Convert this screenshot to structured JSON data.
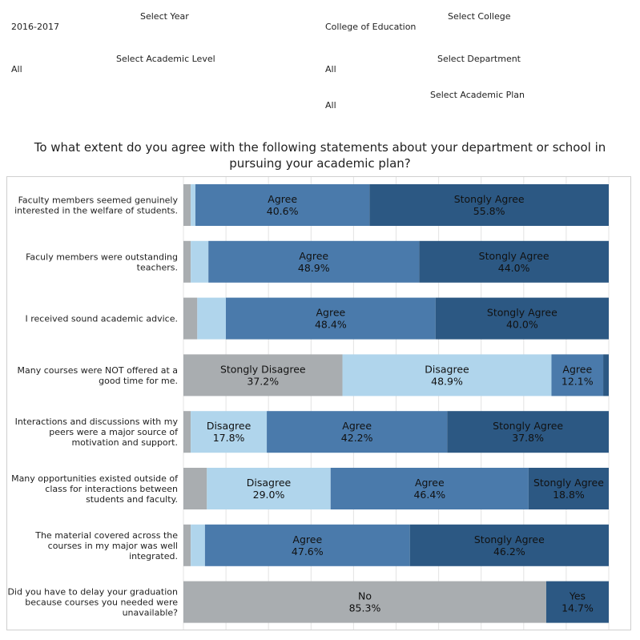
{
  "filters": {
    "year": {
      "label": "Select Year",
      "value": "2016-2017"
    },
    "college": {
      "label": "Select College",
      "value": "College of Education"
    },
    "academic_level": {
      "label": "Select Academic Level",
      "value": "All"
    },
    "department": {
      "label": "Select Department",
      "value": "All"
    },
    "academic_plan": {
      "label": "Select Academic Plan",
      "value": "All"
    }
  },
  "title": {
    "line1": "To what extent do you agree with the following statements about your department or school in",
    "line2": "pursuing your academic plan?"
  },
  "colors": {
    "Stongly Disagree": "#a9adb0",
    "Disagree": "#b0d5ec",
    "Agree": "#4a7aab",
    "Stongly Agree": "#2c5883",
    "No": "#a9adb0",
    "Yes": "#2c5883",
    "gridline": "#e3e3e3"
  },
  "chart_data": {
    "type": "bar",
    "orientation": "horizontal-stacked-100",
    "xlim": [
      0,
      100
    ],
    "categories": [
      [
        "Faculty members seemed genuinely",
        "interested in the welfare of students."
      ],
      [
        "Faculy members were outstanding",
        "teachers."
      ],
      [
        "I received sound academic advice."
      ],
      [
        "Many courses were NOT offered at a",
        "good time for me."
      ],
      [
        "Interactions and discussions with my",
        "peers were a major source of",
        "motivation and support."
      ],
      [
        "Many opportunities existed outside of",
        "class for interactions between",
        "students and faculty."
      ],
      [
        "The material covered across the",
        "courses in my major was well",
        "integrated."
      ],
      [
        "Did you have to delay your graduation",
        "because courses you needed were",
        "unavailable?"
      ]
    ],
    "rows": [
      {
        "segments": [
          {
            "name": "Stongly Disagree",
            "value": 1.7,
            "label": ""
          },
          {
            "name": "Disagree",
            "value": 1.1,
            "label": ""
          },
          {
            "name": "Agree",
            "value": 40.6,
            "label": "40.6%"
          },
          {
            "name": "Stongly Agree",
            "value": 55.8,
            "label": "55.8%"
          }
        ]
      },
      {
        "segments": [
          {
            "name": "Stongly Disagree",
            "value": 1.7,
            "label": ""
          },
          {
            "name": "Disagree",
            "value": 4.1,
            "label": ""
          },
          {
            "name": "Agree",
            "value": 48.9,
            "label": "48.9%"
          },
          {
            "name": "Stongly Agree",
            "value": 44.0,
            "label": "44.0%"
          }
        ]
      },
      {
        "segments": [
          {
            "name": "Stongly Disagree",
            "value": 3.2,
            "label": ""
          },
          {
            "name": "Disagree",
            "value": 6.6,
            "label": ""
          },
          {
            "name": "Agree",
            "value": 48.4,
            "label": "48.4%"
          },
          {
            "name": "Stongly Agree",
            "value": 40.0,
            "label": "40.0%"
          }
        ]
      },
      {
        "segments": [
          {
            "name": "Stongly Disagree",
            "value": 37.2,
            "label": "37.2%"
          },
          {
            "name": "Disagree",
            "value": 48.9,
            "label": "48.9%"
          },
          {
            "name": "Agree",
            "value": 12.1,
            "label": "12.1%"
          },
          {
            "name": "Stongly Agree",
            "value": 1.3,
            "label": ""
          }
        ]
      },
      {
        "segments": [
          {
            "name": "Stongly Disagree",
            "value": 1.7,
            "label": ""
          },
          {
            "name": "Disagree",
            "value": 17.8,
            "label": "17.8%"
          },
          {
            "name": "Agree",
            "value": 42.2,
            "label": "42.2%"
          },
          {
            "name": "Stongly Agree",
            "value": 37.8,
            "label": "37.8%"
          }
        ]
      },
      {
        "segments": [
          {
            "name": "Stongly Disagree",
            "value": 5.5,
            "label": ""
          },
          {
            "name": "Disagree",
            "value": 29.0,
            "label": "29.0%"
          },
          {
            "name": "Agree",
            "value": 46.4,
            "label": "46.4%"
          },
          {
            "name": "Stongly Agree",
            "value": 18.8,
            "label": "18.8%"
          }
        ]
      },
      {
        "segments": [
          {
            "name": "Stongly Disagree",
            "value": 1.7,
            "label": ""
          },
          {
            "name": "Disagree",
            "value": 3.3,
            "label": ""
          },
          {
            "name": "Agree",
            "value": 47.6,
            "label": "47.6%"
          },
          {
            "name": "Stongly Agree",
            "value": 46.2,
            "label": "46.2%"
          }
        ]
      },
      {
        "segments": [
          {
            "name": "No",
            "value": 85.3,
            "label": "85.3%"
          },
          {
            "name": "Yes",
            "value": 14.7,
            "label": "14.7%"
          }
        ]
      }
    ]
  }
}
